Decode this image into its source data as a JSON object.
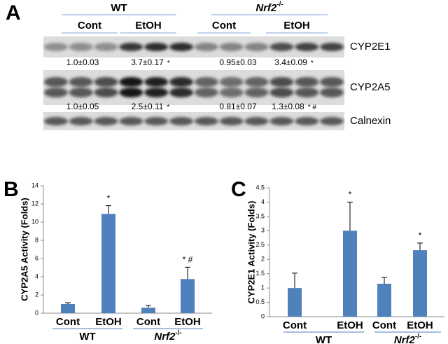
{
  "blot": {
    "label": "A",
    "groups": [
      {
        "name": "WT"
      },
      {
        "name": "Nrf2",
        "superscript": "-/-"
      }
    ],
    "conditions": [
      "Cont",
      "EtOH",
      "Cont",
      "EtOH"
    ],
    "rows": [
      {
        "name": "CYP2E1",
        "quant": [
          "1.0±0.03",
          "3.7±0.17",
          "0.95±0.03",
          "3.4±0.09"
        ],
        "marks": [
          null,
          "*",
          null,
          "*"
        ]
      },
      {
        "name": "CYP2A5",
        "quant": [
          "1.0±0.05",
          "2.5±0.11",
          "0.81±0.07",
          "1.3±0.08"
        ],
        "marks": [
          null,
          "*",
          null,
          "* #"
        ]
      },
      {
        "name": "Calnexin"
      }
    ]
  },
  "chart_data": [
    {
      "type": "bar",
      "panel_label": "B",
      "y_label": "CYP2A5 Activity (Folds)",
      "categories": [
        "Cont",
        "EtOH",
        "Cont",
        "EtOH"
      ],
      "groups": [
        {
          "name": "WT"
        },
        {
          "name": "Nrf2",
          "superscript": "-/-"
        }
      ],
      "values": [
        1.0,
        10.9,
        0.6,
        3.75
      ],
      "errors": [
        0.15,
        0.9,
        0.25,
        1.3
      ],
      "annotations": [
        null,
        "*",
        null,
        "* #"
      ],
      "color": "#4f81bd",
      "ylim": [
        0,
        14
      ],
      "yticks": [
        0,
        2,
        4,
        6,
        8,
        10,
        12,
        14
      ]
    },
    {
      "type": "bar",
      "panel_label": "C",
      "y_label": "CYP2E1 Activity (Folds)",
      "categories": [
        "Cont",
        "EtOH",
        "Cont",
        "EtOH"
      ],
      "groups": [
        {
          "name": "WT"
        },
        {
          "name": "Nrf2",
          "superscript": "-/-"
        }
      ],
      "values": [
        1.0,
        3.0,
        1.15,
        2.32
      ],
      "errors": [
        0.52,
        1.0,
        0.22,
        0.25
      ],
      "annotations": [
        null,
        "*",
        null,
        "*"
      ],
      "color": "#4f81bd",
      "ylim": [
        0,
        4.5
      ],
      "yticks": [
        0,
        0.5,
        1,
        1.5,
        2,
        2.5,
        3,
        3.5,
        4,
        4.5
      ]
    }
  ]
}
